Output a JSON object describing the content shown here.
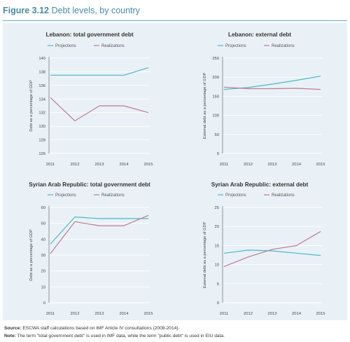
{
  "figure": {
    "number": "Figure 3.12",
    "title": "Debt levels, by country"
  },
  "colors": {
    "projections": "#4bb8c4",
    "realizations": "#c07a95",
    "panel_bg": "#e9f1f6",
    "grid": "#ffffff",
    "title_accent": "#4a8aa4"
  },
  "legend": {
    "projections": "Projections",
    "realizations": "Realizations"
  },
  "chart_data": [
    {
      "type": "line",
      "title": "Lebanon: total government debt",
      "ylabel": "Debt as a percentage of GDP",
      "x": [
        "2011",
        "2012",
        "2013",
        "2014",
        "2015"
      ],
      "ylim": [
        126,
        140
      ],
      "yticks": [
        126,
        128,
        130,
        132,
        134,
        136,
        138,
        140
      ],
      "series": [
        {
          "name": "Projections",
          "values": [
            137.5,
            137.5,
            137.5,
            137.5,
            138.6
          ]
        },
        {
          "name": "Realizations",
          "values": [
            134.2,
            130.8,
            133,
            133,
            132
          ]
        }
      ]
    },
    {
      "type": "line",
      "title": "Lebanon: external debt",
      "ylabel": "External debt as a percentage of GDP",
      "x": [
        "2011",
        "2012",
        "2013",
        "2014",
        "2015"
      ],
      "ylim": [
        0,
        250
      ],
      "yticks": [
        0,
        50,
        100,
        150,
        200,
        250
      ],
      "series": [
        {
          "name": "Projections",
          "values": [
            168,
            173,
            182,
            192,
            203
          ]
        },
        {
          "name": "Realizations",
          "values": [
            174,
            170,
            170,
            171,
            168
          ]
        }
      ]
    },
    {
      "type": "line",
      "title": "Syrian Arab Republic: total government debt",
      "ylabel": "Debt as a percentage of GDP",
      "x": [
        "2011",
        "2012",
        "2013",
        "2014",
        "2015"
      ],
      "ylim": [
        0,
        60
      ],
      "yticks": [
        0,
        10,
        20,
        30,
        40,
        50,
        60
      ],
      "series": [
        {
          "name": "Projections",
          "values": [
            37,
            54,
            53,
            53,
            53
          ]
        },
        {
          "name": "Realizations",
          "values": [
            31,
            51,
            48.5,
            48.5,
            55
          ]
        }
      ]
    },
    {
      "type": "line",
      "title": "Syrian Arab Republic: external debt",
      "ylabel": "External debt as a percentage of GDP",
      "x": [
        "2011",
        "2012",
        "2013",
        "2014",
        "2015"
      ],
      "ylim": [
        0,
        25
      ],
      "yticks": [
        0,
        5,
        10,
        15,
        20,
        25
      ],
      "series": [
        {
          "name": "Projections",
          "values": [
            13,
            13.8,
            13.6,
            13.0,
            12.4
          ]
        },
        {
          "name": "Realizations",
          "values": [
            9.5,
            12,
            14,
            15,
            18.7
          ]
        }
      ]
    }
  ],
  "footnotes": {
    "source_label": "Source:",
    "source_text": " ESCWA staff calculations based on IMF Article IV consultations (2008-2014).",
    "note_label": "Note:",
    "note_text": " The term \"total government debt\" is used in IMF data, while the term \"public debt\" is used in EIU data."
  }
}
